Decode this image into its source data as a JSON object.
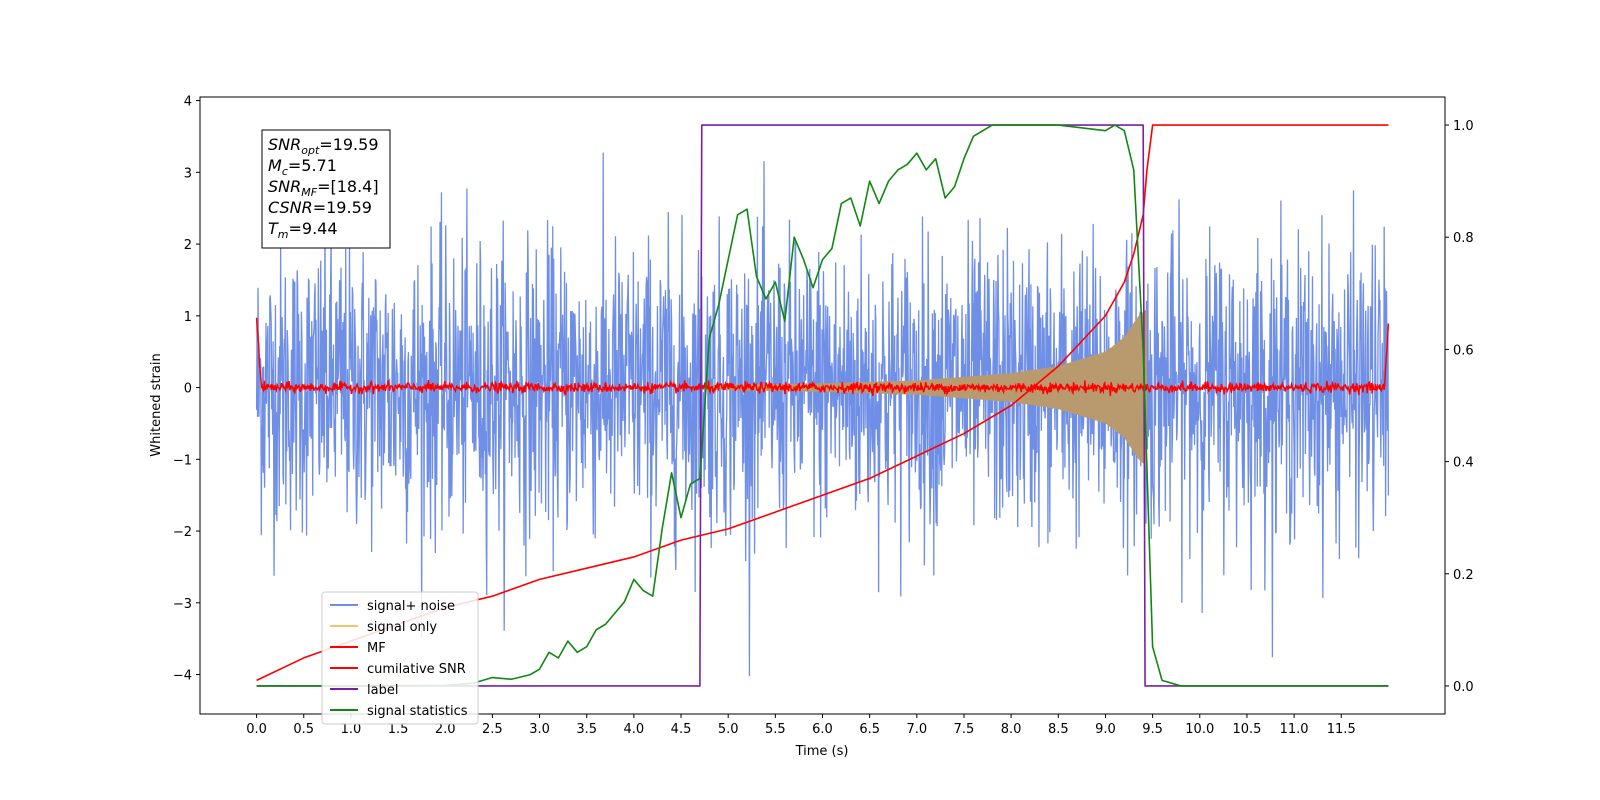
{
  "chart_data": {
    "type": "line",
    "title": "",
    "xlabel": "Time (s)",
    "ylabel": "Whitened strain",
    "y2label": "",
    "xlim": [
      -0.6,
      12.6
    ],
    "ylim": [
      -4.55,
      4.05
    ],
    "y2lim": [
      -0.05,
      1.05
    ],
    "x_ticks": [
      "0.0",
      "0.5",
      "1.0",
      "1.5",
      "2.0",
      "2.5",
      "3.0",
      "3.5",
      "4.0",
      "4.5",
      "5.0",
      "5.5",
      "6.0",
      "6.5",
      "7.0",
      "7.5",
      "8.0",
      "8.5",
      "9.0",
      "9.5",
      "10.0",
      "10.5",
      "11.0",
      "11.5"
    ],
    "y_ticks": [
      "4",
      "3",
      "2",
      "1",
      "0",
      "−1",
      "−2",
      "−3",
      "−4"
    ],
    "y2_ticks": [
      "1.0",
      "0.8",
      "0.6",
      "0.4",
      "0.2",
      "0.0"
    ],
    "grid": false,
    "legend_position": "lower-left",
    "annotation": {
      "lines": [
        {
          "label_main": "SNR",
          "label_sub": "opt",
          "value": "=19.59"
        },
        {
          "label_main": "M",
          "label_sub": "c",
          "value": "=5.71"
        },
        {
          "label_main": "SNR",
          "label_sub": "MF",
          "value": "=[18.4]"
        },
        {
          "label_main": "CSNR",
          "label_sub": "",
          "value": "=19.59"
        },
        {
          "label_main": "T",
          "label_sub": "m",
          "value": "=9.44"
        }
      ]
    },
    "series": [
      {
        "name": "signal+ noise",
        "color": "#6f8fe6",
        "axis": "left",
        "kind": "noise",
        "x_range": [
          0.0,
          12.0
        ],
        "amplitude_sigma": 1.0,
        "amplitude_max": 3.5
      },
      {
        "name": "signal only",
        "color": "#f5c46a",
        "axis": "left",
        "kind": "chirp_envelope",
        "x_range": [
          4.7,
          9.44
        ],
        "envelope": [
          [
            4.7,
            0.03
          ],
          [
            6.0,
            0.06
          ],
          [
            7.0,
            0.1
          ],
          [
            8.0,
            0.2
          ],
          [
            8.5,
            0.3
          ],
          [
            9.0,
            0.5
          ],
          [
            9.2,
            0.7
          ],
          [
            9.35,
            1.0
          ],
          [
            9.44,
            1.1
          ]
        ]
      },
      {
        "name": "MF",
        "color": "#ff0000",
        "axis": "left",
        "kind": "mf",
        "x_range": [
          0.0,
          12.0
        ],
        "start_value": 1.0,
        "end_value": 0.9,
        "noise_level": 0.07
      },
      {
        "name": "cumilative SNR",
        "color": "#ff0000",
        "axis": "right",
        "x": [
          0.0,
          0.5,
          1.0,
          1.5,
          2.0,
          2.5,
          3.0,
          3.5,
          4.0,
          4.5,
          5.0,
          5.5,
          6.0,
          6.5,
          7.0,
          7.5,
          8.0,
          8.5,
          9.0,
          9.2,
          9.3,
          9.4,
          9.44,
          9.5,
          12.0
        ],
        "y": [
          0.01,
          0.05,
          0.08,
          0.11,
          0.14,
          0.16,
          0.19,
          0.21,
          0.23,
          0.26,
          0.28,
          0.31,
          0.34,
          0.37,
          0.41,
          0.45,
          0.5,
          0.57,
          0.66,
          0.72,
          0.77,
          0.84,
          0.92,
          1.0,
          1.0
        ]
      },
      {
        "name": "label",
        "color": "#7b1fa2",
        "axis": "right",
        "x": [
          0.0,
          4.7,
          4.72,
          9.4,
          9.42,
          12.0
        ],
        "y": [
          0.0,
          0.0,
          1.0,
          1.0,
          0.0,
          0.0
        ]
      },
      {
        "name": "signal statistics",
        "color": "#118811",
        "axis": "right",
        "x": [
          0.0,
          1.0,
          2.0,
          2.3,
          2.5,
          2.7,
          2.9,
          3.0,
          3.1,
          3.2,
          3.3,
          3.4,
          3.5,
          3.6,
          3.7,
          3.8,
          3.9,
          4.0,
          4.1,
          4.2,
          4.3,
          4.4,
          4.5,
          4.6,
          4.7,
          4.8,
          4.9,
          5.0,
          5.1,
          5.2,
          5.3,
          5.4,
          5.5,
          5.6,
          5.7,
          5.8,
          5.9,
          6.0,
          6.1,
          6.2,
          6.3,
          6.4,
          6.5,
          6.6,
          6.7,
          6.8,
          6.9,
          7.0,
          7.1,
          7.2,
          7.3,
          7.4,
          7.5,
          7.6,
          7.8,
          8.0,
          8.5,
          9.0,
          9.1,
          9.2,
          9.3,
          9.4,
          9.5,
          9.6,
          9.8,
          12.0
        ],
        "y": [
          0.0,
          0.0,
          0.001,
          0.005,
          0.015,
          0.012,
          0.02,
          0.03,
          0.06,
          0.05,
          0.08,
          0.06,
          0.07,
          0.1,
          0.11,
          0.13,
          0.15,
          0.19,
          0.17,
          0.16,
          0.28,
          0.38,
          0.3,
          0.36,
          0.37,
          0.62,
          0.68,
          0.76,
          0.84,
          0.85,
          0.73,
          0.69,
          0.72,
          0.65,
          0.8,
          0.76,
          0.71,
          0.76,
          0.78,
          0.86,
          0.87,
          0.82,
          0.9,
          0.86,
          0.9,
          0.92,
          0.93,
          0.95,
          0.92,
          0.94,
          0.87,
          0.89,
          0.94,
          0.98,
          1.0,
          1.0,
          1.0,
          0.99,
          1.0,
          0.99,
          0.92,
          0.6,
          0.07,
          0.01,
          0.0,
          0.0
        ]
      }
    ]
  }
}
